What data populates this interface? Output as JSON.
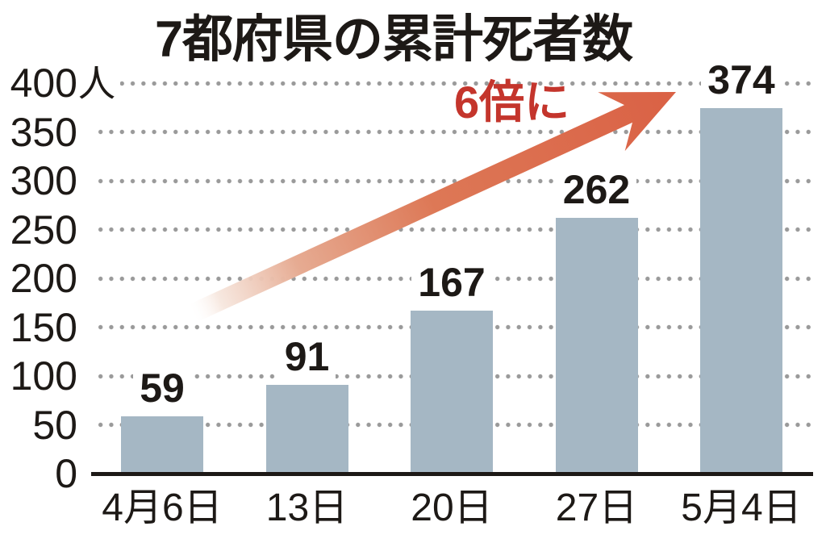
{
  "chart_data": {
    "type": "bar",
    "title": "7都府県の累計死者数",
    "unit": "人",
    "categories": [
      "4月6日",
      "13日",
      "20日",
      "27日",
      "5月4日"
    ],
    "values": [
      59,
      91,
      167,
      262,
      374
    ],
    "yticks": [
      400,
      350,
      300,
      250,
      200,
      150,
      100,
      50,
      0
    ],
    "ylim": [
      0,
      400
    ],
    "grid": "dotted-horizontal",
    "legend": "none",
    "annotations": [
      {
        "text": "6倍に",
        "color": "#c4352c",
        "shape": "up-right-arrow"
      }
    ],
    "colors": {
      "bar": "#a5b7c4",
      "annotation_text": "#c4352c",
      "arrow_head": "#da6145",
      "arrow_tail_fade": "#ffffff",
      "grid_dot": "#9a9a9a",
      "axis_text": "#1d1916",
      "background": "#ffffff"
    }
  }
}
